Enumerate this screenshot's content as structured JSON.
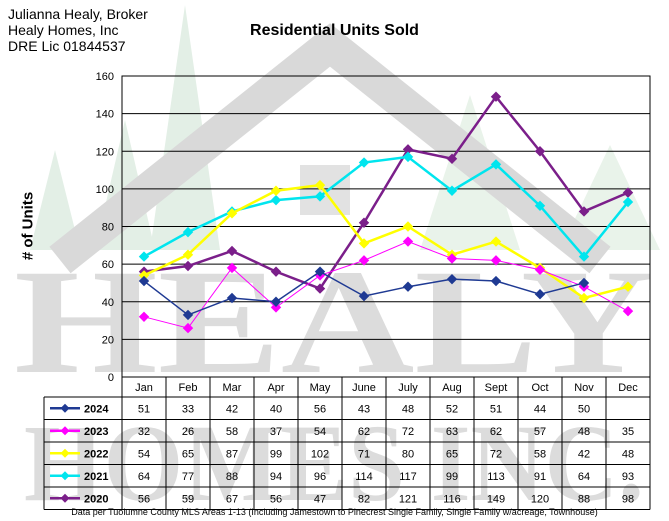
{
  "broker": {
    "line1": "Julianna Healy, Broker",
    "line2": "Healy Homes, Inc",
    "line3": "DRE Lic 01844537"
  },
  "watermark": {
    "text_top": "HEALY",
    "text_bottom": "HOMES INC."
  },
  "footnote": "Data per Tuolumne County MLS Areas 1-13 (Including Jamestown to Pinecrest Single Family, Single Family w/acreage, Townhouse)",
  "chart_data": {
    "type": "line",
    "title": "Residential Units Sold",
    "ylabel": "# of Units",
    "xlabel": "",
    "ylim": [
      0,
      160
    ],
    "yticks": [
      0,
      20,
      40,
      60,
      80,
      100,
      120,
      140,
      160
    ],
    "grid": true,
    "legend": "data-table-below",
    "categories": [
      "Jan",
      "Feb",
      "Mar",
      "Apr",
      "May",
      "June",
      "July",
      "Aug",
      "Sept",
      "Oct",
      "Nov",
      "Dec"
    ],
    "series": [
      {
        "name": "2024",
        "color": "#1f3a93",
        "values": [
          51,
          33,
          42,
          40,
          56,
          43,
          48,
          52,
          51,
          44,
          50,
          null
        ]
      },
      {
        "name": "2023",
        "color": "#ff00ff",
        "values": [
          32,
          26,
          58,
          37,
          54,
          62,
          72,
          63,
          62,
          57,
          48,
          35
        ]
      },
      {
        "name": "2022",
        "color": "#ffff00",
        "values": [
          54,
          65,
          87,
          99,
          102,
          71,
          80,
          65,
          72,
          58,
          42,
          48
        ]
      },
      {
        "name": "2021",
        "color": "#00e5ee",
        "values": [
          64,
          77,
          88,
          94,
          96,
          114,
          117,
          99,
          113,
          91,
          64,
          93
        ]
      },
      {
        "name": "2020",
        "color": "#7b1f8a",
        "values": [
          56,
          59,
          67,
          56,
          47,
          82,
          121,
          116,
          149,
          120,
          88,
          98
        ]
      }
    ]
  }
}
